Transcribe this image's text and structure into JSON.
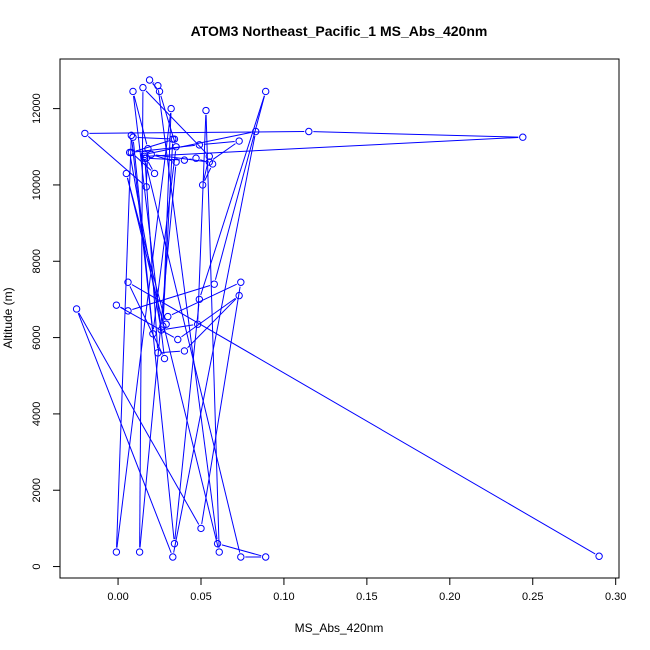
{
  "chart_data": {
    "type": "line",
    "title": "ATOM3 Northeast_Pacific_1 MS_Abs_420nm",
    "xlabel": "MS_Abs_420nm",
    "ylabel": "Altitude (m)",
    "xlim": [
      -0.035,
      0.302
    ],
    "ylim": [
      -300,
      13300
    ],
    "xticks": [
      0.0,
      0.05,
      0.1,
      0.15,
      0.2,
      0.25,
      0.3
    ],
    "xtick_labels": [
      "0.00",
      "0.05",
      "0.10",
      "0.15",
      "0.20",
      "0.25",
      "0.30"
    ],
    "yticks": [
      0,
      2000,
      4000,
      6000,
      8000,
      10000,
      12000
    ],
    "ytick_labels": [
      "0",
      "2000",
      "4000",
      "6000",
      "8000",
      "10000",
      "12000"
    ],
    "grid": false,
    "series_color": "#0000ff",
    "series": [
      {
        "marker": "open-circle",
        "x": [
          0.29,
          0.006,
          0.028,
          0.009,
          0.018,
          0.017,
          -0.02,
          0.115,
          0.244,
          0.016,
          0.017,
          0.022,
          0.008,
          0.034,
          0.009,
          0.034,
          0.049,
          0.089,
          0.058,
          0.006,
          -0.001,
          0.036,
          0.073,
          0.04,
          0.024,
          0.016,
          0.083,
          0.033,
          -0.025,
          0.05,
          0.074,
          0.03,
          0.029,
          0.005,
          0.061,
          0.053,
          0.048,
          0.026,
          0.007,
          0.049,
          0.073,
          0.055,
          0.02,
          0.035,
          0.013,
          0.015,
          0.055,
          0.051,
          0.057,
          0.047,
          0.04,
          0.016,
          0.074,
          0.089,
          0.06,
          0.024,
          0.019,
          0.025,
          0.035,
          0.021,
          0.008,
          -0.001,
          0.032,
          0.027,
          0.033
        ],
        "y": [
          270,
          7450,
          5450,
          12450,
          10950,
          9950,
          11350,
          11400,
          11250,
          10750,
          10700,
          10300,
          10850,
          11200,
          11250,
          600,
          7000,
          12450,
          7400,
          6700,
          6850,
          5950,
          7100,
          5650,
          5600,
          10800,
          11400,
          250,
          6750,
          1000,
          7450,
          6550,
          6350,
          10300,
          380,
          11950,
          6350,
          6200,
          10850,
          11050,
          11150,
          10600,
          10800,
          10600,
          380,
          12550,
          10750,
          10000,
          10550,
          10700,
          10650,
          10700,
          250,
          250,
          600,
          12600,
          12750,
          12450,
          11000,
          6100,
          11300,
          380,
          12000,
          6300,
          11200
        ]
      }
    ]
  }
}
